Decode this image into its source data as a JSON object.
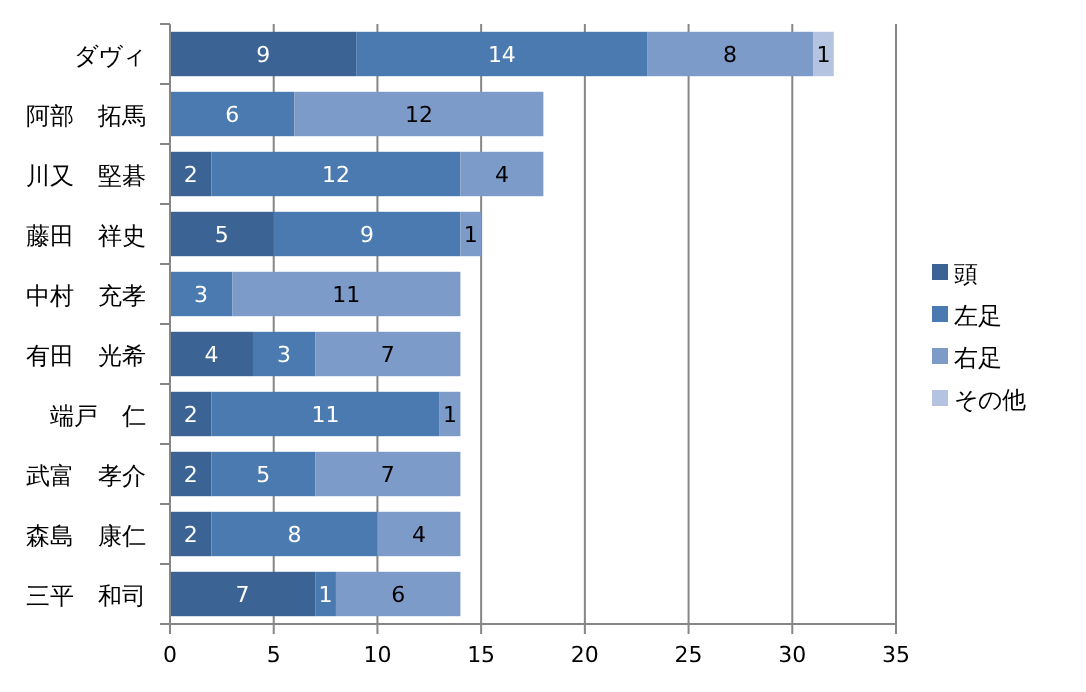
{
  "chart_data": {
    "type": "bar",
    "orientation": "horizontal",
    "stacked": true,
    "data_labels": true,
    "categories": [
      "ダヴィ",
      "阿部　拓馬",
      "川又　堅碁",
      "藤田　祥史",
      "中村　充孝",
      "有田　光希",
      "端戸　仁",
      "武富　孝介",
      "森島　康仁",
      "三平　和司"
    ],
    "series": [
      {
        "name": "頭",
        "color": "#3b6494",
        "values": [
          9,
          null,
          2,
          5,
          null,
          4,
          2,
          2,
          2,
          7
        ]
      },
      {
        "name": "左足",
        "color": "#4a7ab0",
        "values": [
          14,
          6,
          12,
          9,
          3,
          3,
          11,
          5,
          8,
          1
        ]
      },
      {
        "name": "右足",
        "color": "#7d9bc8",
        "values": [
          8,
          12,
          4,
          1,
          11,
          7,
          1,
          7,
          4,
          6
        ]
      },
      {
        "name": "その他",
        "color": "#b4c4e0",
        "values": [
          1,
          null,
          null,
          null,
          null,
          null,
          null,
          null,
          null,
          null
        ]
      }
    ],
    "xlim": [
      0,
      35
    ],
    "xticks": [
      0,
      5,
      10,
      15,
      20,
      25,
      30,
      35
    ],
    "grid": "x",
    "legend": "right"
  }
}
